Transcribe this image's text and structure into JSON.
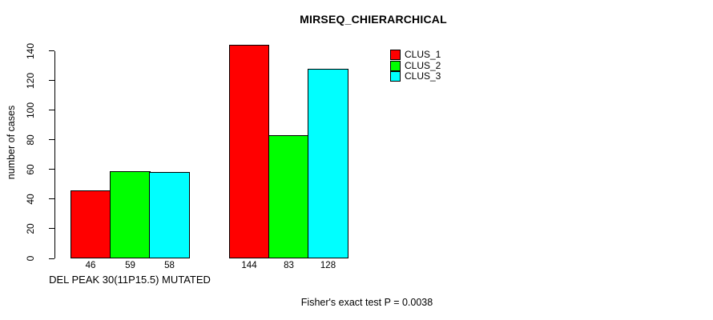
{
  "chart_data": {
    "type": "bar",
    "title": "MIRSEQ_CHIERARCHICAL",
    "xlabel": "",
    "ylabel": "number of cases",
    "categories": [
      "DEL PEAK 30(11P15.5) MUTATED",
      ""
    ],
    "series": [
      {
        "name": "CLUS_1",
        "color": "#ff0000",
        "values": [
          46,
          144
        ]
      },
      {
        "name": "CLUS_2",
        "color": "#00ff00",
        "values": [
          59,
          83
        ]
      },
      {
        "name": "CLUS_3",
        "color": "#00ffff",
        "values": [
          58,
          128
        ]
      }
    ],
    "bar_value_labels_shown": true,
    "yticks": [
      0,
      20,
      40,
      60,
      80,
      100,
      120,
      140
    ],
    "ylim": [
      0,
      144
    ],
    "axis_max_tick": 140,
    "grid": false,
    "legend_position": "topright",
    "bar_border_color": "#000000",
    "background_color": "#ffffff",
    "annotation": "Fisher's exact test P = 0.0038"
  }
}
